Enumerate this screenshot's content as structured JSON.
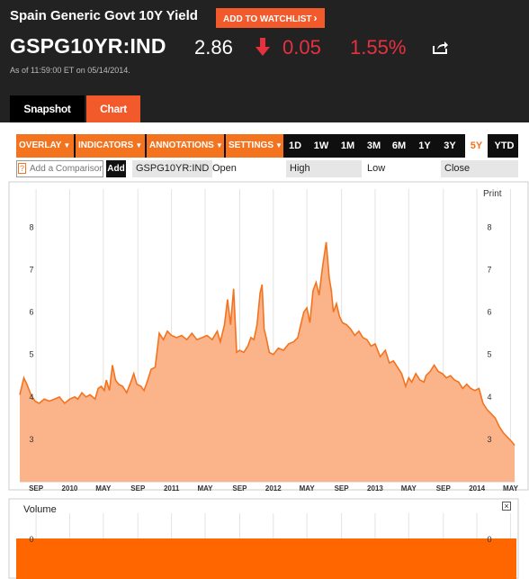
{
  "header": {
    "title": "Spain Generic Govt 10Y Yield",
    "watchlist_label": "ADD TO WATCHLIST",
    "ticker": "GSPG10YR:IND",
    "price": "2.86",
    "change": "0.05",
    "change_pct": "1.55%",
    "as_of": "As of 11:59:00 ET on 05/14/2014.",
    "down_color": "#e8313e"
  },
  "tabs": {
    "snapshot": "Snapshot",
    "chart": "Chart"
  },
  "toolbar": {
    "menus": [
      "OVERLAY",
      "INDICATORS",
      "ANNOTATIONS",
      "SETTINGS"
    ],
    "ranges": [
      "1D",
      "1W",
      "1M",
      "3M",
      "6M",
      "1Y",
      "3Y",
      "5Y",
      "YTD"
    ],
    "active_range": "5Y"
  },
  "compare": {
    "placeholder": "Add a Comparison",
    "add_label": "Add",
    "symbol": "GSPG10YR:IND",
    "fields": [
      "Open",
      "High",
      "Low",
      "Close"
    ]
  },
  "chart_data": {
    "type": "area",
    "print_label": "Print",
    "volume_label": "Volume",
    "line_color": "#f4731f",
    "fill_color": "#fbb48a",
    "yticks": [
      3,
      4,
      5,
      6,
      7,
      8
    ],
    "ylim": [
      2.0,
      8.9
    ],
    "xlim": [
      2009.51,
      2014.37
    ],
    "xticks": [
      {
        "label": "SEP",
        "x": 2009.67
      },
      {
        "label": "2010",
        "x": 2010.0
      },
      {
        "label": "MAY",
        "x": 2010.33
      },
      {
        "label": "SEP",
        "x": 2010.67
      },
      {
        "label": "2011",
        "x": 2011.0
      },
      {
        "label": "MAY",
        "x": 2011.33
      },
      {
        "label": "SEP",
        "x": 2011.67
      },
      {
        "label": "2012",
        "x": 2012.0
      },
      {
        "label": "MAY",
        "x": 2012.33
      },
      {
        "label": "SEP",
        "x": 2012.67
      },
      {
        "label": "2013",
        "x": 2013.0
      },
      {
        "label": "MAY",
        "x": 2013.33
      },
      {
        "label": "SEP",
        "x": 2013.67
      },
      {
        "label": "2014",
        "x": 2014.0
      },
      {
        "label": "MAY",
        "x": 2014.33
      }
    ],
    "volume_ticks": [
      0
    ],
    "x": [
      2009.51,
      2009.55,
      2009.58,
      2009.62,
      2009.66,
      2009.7,
      2009.75,
      2009.8,
      2009.85,
      2009.9,
      2009.95,
      2010.0,
      2010.05,
      2010.08,
      2010.12,
      2010.16,
      2010.2,
      2010.25,
      2010.28,
      2010.31,
      2010.34,
      2010.36,
      2010.39,
      2010.42,
      2010.45,
      2010.48,
      2010.52,
      2010.56,
      2010.6,
      2010.63,
      2010.66,
      2010.7,
      2010.73,
      2010.76,
      2010.8,
      2010.84,
      2010.88,
      2010.92,
      2010.96,
      2011.0,
      2011.05,
      2011.1,
      2011.15,
      2011.2,
      2011.25,
      2011.3,
      2011.35,
      2011.4,
      2011.45,
      2011.48,
      2011.52,
      2011.55,
      2011.58,
      2011.61,
      2011.64,
      2011.67,
      2011.71,
      2011.75,
      2011.78,
      2011.81,
      2011.84,
      2011.87,
      2011.89,
      2011.91,
      2011.93,
      2011.96,
      2012.0,
      2012.05,
      2012.1,
      2012.15,
      2012.2,
      2012.24,
      2012.27,
      2012.3,
      2012.33,
      2012.36,
      2012.39,
      2012.42,
      2012.45,
      2012.48,
      2012.52,
      2012.55,
      2012.57,
      2012.59,
      2012.62,
      2012.65,
      2012.68,
      2012.72,
      2012.76,
      2012.8,
      2012.84,
      2012.88,
      2012.92,
      2012.96,
      2013.0,
      2013.05,
      2013.1,
      2013.14,
      2013.18,
      2013.22,
      2013.26,
      2013.3,
      2013.33,
      2013.36,
      2013.4,
      2013.44,
      2013.48,
      2013.5,
      2013.54,
      2013.58,
      2013.62,
      2013.66,
      2013.7,
      2013.74,
      2013.78,
      2013.82,
      2013.86,
      2013.9,
      2013.94,
      2013.98,
      2014.02,
      2014.06,
      2014.1,
      2014.14,
      2014.18,
      2014.22,
      2014.26,
      2014.3,
      2014.34,
      2014.37
    ],
    "y": [
      4.05,
      4.45,
      4.3,
      4.05,
      3.9,
      3.85,
      3.95,
      3.9,
      3.95,
      4.0,
      3.85,
      3.95,
      4.0,
      3.95,
      4.1,
      4.0,
      4.05,
      3.95,
      4.2,
      4.25,
      4.15,
      4.4,
      4.15,
      4.75,
      4.4,
      4.3,
      4.25,
      4.1,
      4.35,
      4.55,
      4.3,
      4.25,
      4.15,
      4.35,
      4.65,
      4.7,
      5.5,
      5.35,
      5.55,
      5.45,
      5.4,
      5.45,
      5.35,
      5.5,
      5.35,
      5.4,
      5.45,
      5.35,
      5.55,
      5.3,
      5.7,
      6.3,
      5.7,
      6.55,
      5.05,
      5.1,
      5.05,
      5.2,
      5.4,
      5.35,
      5.7,
      6.45,
      6.65,
      5.6,
      5.4,
      5.05,
      5.0,
      5.15,
      5.1,
      5.25,
      5.3,
      5.4,
      5.7,
      6.0,
      6.1,
      5.75,
      6.5,
      6.7,
      6.4,
      7.0,
      7.65,
      6.8,
      6.5,
      6.0,
      6.2,
      5.9,
      5.75,
      5.7,
      5.6,
      5.45,
      5.55,
      5.4,
      5.35,
      5.2,
      5.25,
      4.95,
      5.1,
      4.8,
      4.85,
      4.7,
      4.55,
      4.25,
      4.45,
      4.35,
      4.55,
      4.4,
      4.35,
      4.5,
      4.6,
      4.75,
      4.6,
      4.55,
      4.45,
      4.5,
      4.4,
      4.35,
      4.2,
      4.3,
      4.2,
      4.15,
      4.2,
      3.85,
      3.7,
      3.6,
      3.5,
      3.3,
      3.15,
      3.05,
      2.95,
      2.86
    ],
    "volume": [
      0
    ]
  }
}
